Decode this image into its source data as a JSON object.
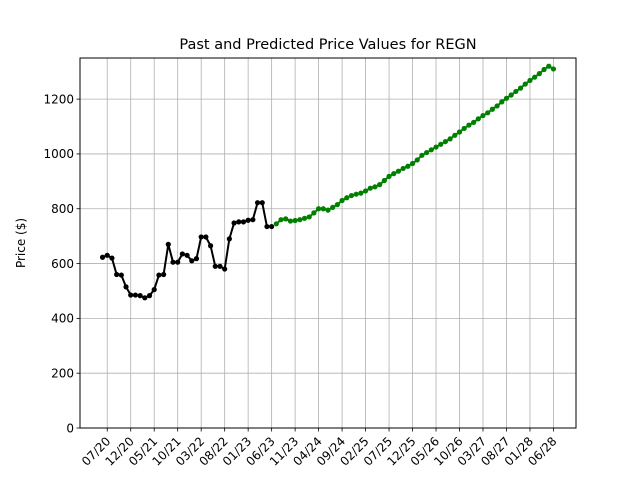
{
  "chart_data": {
    "type": "line",
    "title": "Past and Predicted Price Values for REGN",
    "xlabel": "",
    "ylabel": "Price ($)",
    "ylim": [
      0,
      1350
    ],
    "yticks": [
      0,
      200,
      400,
      600,
      800,
      1000,
      1200
    ],
    "xticks": [
      "07/20",
      "12/20",
      "05/21",
      "10/21",
      "03/22",
      "08/22",
      "01/23",
      "06/23",
      "11/23",
      "04/24",
      "09/24",
      "02/25",
      "07/25",
      "12/25",
      "05/26",
      "10/26",
      "03/27",
      "08/27",
      "01/28",
      "06/28"
    ],
    "grid": true,
    "series": [
      {
        "role": "past",
        "color": "#000000",
        "x": [
          "2020-06",
          "2020-07",
          "2020-08",
          "2020-09",
          "2020-10",
          "2020-11",
          "2020-12",
          "2021-01",
          "2021-02",
          "2021-03",
          "2021-04",
          "2021-05",
          "2021-06",
          "2021-07",
          "2021-08",
          "2021-09",
          "2021-10",
          "2021-11",
          "2021-12",
          "2022-01",
          "2022-02",
          "2022-03",
          "2022-04",
          "2022-05",
          "2022-06",
          "2022-07",
          "2022-08",
          "2022-09",
          "2022-10",
          "2022-11",
          "2022-12",
          "2023-01",
          "2023-02",
          "2023-03",
          "2023-04",
          "2023-05",
          "2023-06"
        ],
        "values": [
          623,
          630,
          620,
          560,
          558,
          515,
          485,
          485,
          483,
          475,
          483,
          505,
          558,
          560,
          670,
          605,
          605,
          635,
          630,
          610,
          618,
          697,
          697,
          665,
          590,
          590,
          580,
          690,
          748,
          752,
          752,
          758,
          760,
          822,
          822,
          735,
          735
        ]
      },
      {
        "role": "predicted",
        "color": "#008000",
        "x": [
          "2023-07",
          "2023-08",
          "2023-09",
          "2023-10",
          "2023-11",
          "2023-12",
          "2024-01",
          "2024-02",
          "2024-03",
          "2024-04",
          "2024-05",
          "2024-06",
          "2024-07",
          "2024-08",
          "2024-09",
          "2024-10",
          "2024-11",
          "2024-12",
          "2025-01",
          "2025-02",
          "2025-03",
          "2025-04",
          "2025-05",
          "2025-06",
          "2025-07",
          "2025-08",
          "2025-09",
          "2025-10",
          "2025-11",
          "2025-12",
          "2026-01",
          "2026-02",
          "2026-03",
          "2026-04",
          "2026-05",
          "2026-06",
          "2026-07",
          "2026-08",
          "2026-09",
          "2026-10",
          "2026-11",
          "2026-12",
          "2027-01",
          "2027-02",
          "2027-03",
          "2027-04",
          "2027-05",
          "2027-06",
          "2027-07",
          "2027-08",
          "2027-09",
          "2027-10",
          "2027-11",
          "2027-12",
          "2028-01",
          "2028-02",
          "2028-03",
          "2028-04",
          "2028-05",
          "2028-06"
        ],
        "values": [
          745,
          760,
          763,
          755,
          757,
          760,
          765,
          770,
          785,
          800,
          800,
          795,
          805,
          815,
          830,
          840,
          848,
          853,
          857,
          865,
          875,
          880,
          888,
          903,
          918,
          928,
          937,
          947,
          955,
          965,
          978,
          995,
          1005,
          1015,
          1025,
          1035,
          1045,
          1055,
          1068,
          1080,
          1093,
          1105,
          1115,
          1128,
          1140,
          1150,
          1163,
          1175,
          1190,
          1203,
          1215,
          1228,
          1240,
          1255,
          1268,
          1280,
          1293,
          1308,
          1320,
          1310
        ]
      }
    ]
  }
}
